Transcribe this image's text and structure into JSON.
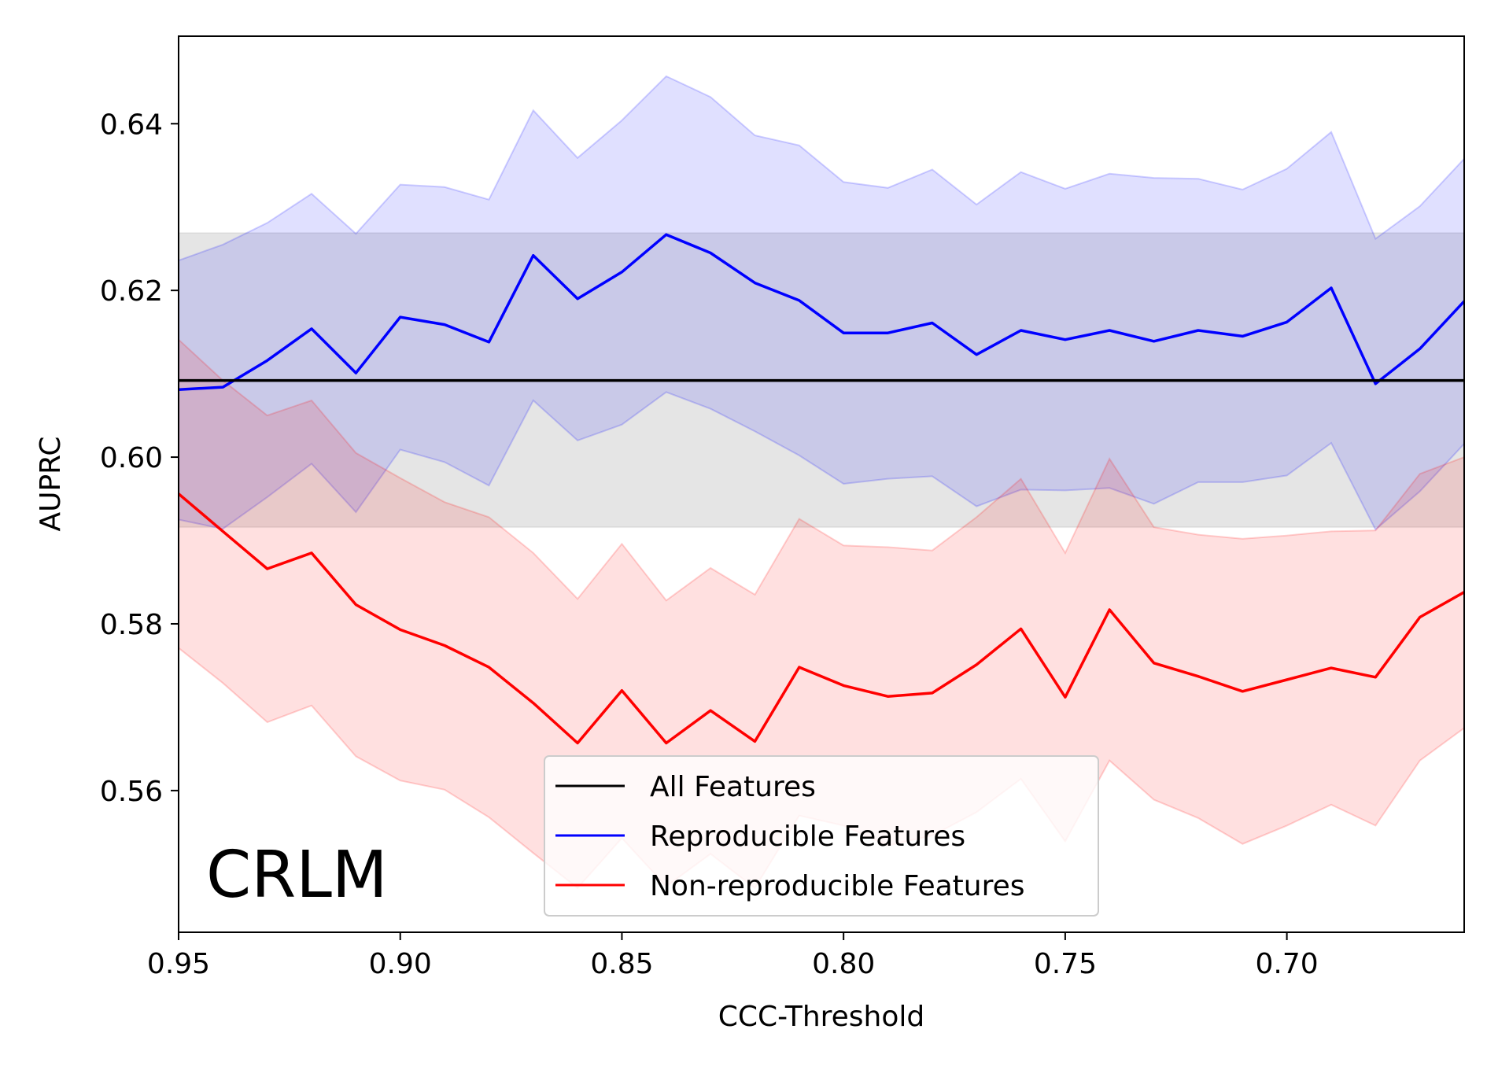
{
  "chart_data": {
    "type": "line",
    "title": "",
    "panel_label": "CRLM",
    "xlabel": "CCC-Threshold",
    "ylabel": "AUPRC",
    "xlim": [
      0.95,
      0.66
    ],
    "ylim": [
      0.543,
      0.6505
    ],
    "x_reversed": true,
    "grid": false,
    "legend_placement": "lower center",
    "x_ticks": [
      0.95,
      0.9,
      0.85,
      0.8,
      0.75,
      0.7
    ],
    "x_tick_labels": [
      "0.95",
      "0.90",
      "0.85",
      "0.80",
      "0.75",
      "0.70"
    ],
    "y_ticks": [
      0.56,
      0.58,
      0.6,
      0.62,
      0.64
    ],
    "y_tick_labels": [
      "0.56",
      "0.58",
      "0.60",
      "0.62",
      "0.64"
    ],
    "x": [
      0.95,
      0.94,
      0.93,
      0.92,
      0.91,
      0.9,
      0.89,
      0.88,
      0.87,
      0.86,
      0.85,
      0.84,
      0.83,
      0.82,
      0.81,
      0.8,
      0.79,
      0.78,
      0.77,
      0.76,
      0.75,
      0.74,
      0.73,
      0.72,
      0.71,
      0.7,
      0.69,
      0.68,
      0.67,
      0.66
    ],
    "series": [
      {
        "name": "All Features",
        "color": "#000000",
        "values": [
          0.6092,
          0.6092,
          0.6092,
          0.6092,
          0.6092,
          0.6092,
          0.6092,
          0.6092,
          0.6092,
          0.6092,
          0.6092,
          0.6092,
          0.6092,
          0.6092,
          0.6092,
          0.6092,
          0.6092,
          0.6092,
          0.6092,
          0.6092,
          0.6092,
          0.6092,
          0.6092,
          0.6092,
          0.6092,
          0.6092,
          0.6092,
          0.6092,
          0.6092,
          0.6092
        ],
        "band_upper": [
          0.6269,
          0.6269,
          0.6269,
          0.6269,
          0.6269,
          0.6269,
          0.6269,
          0.6269,
          0.6269,
          0.6269,
          0.6269,
          0.6269,
          0.6269,
          0.6269,
          0.6269,
          0.6269,
          0.6269,
          0.6269,
          0.6269,
          0.6269,
          0.6269,
          0.6269,
          0.6269,
          0.6269,
          0.6269,
          0.6269,
          0.6269,
          0.6269,
          0.6269,
          0.6269
        ],
        "band_lower": [
          0.5916,
          0.5916,
          0.5916,
          0.5916,
          0.5916,
          0.5916,
          0.5916,
          0.5916,
          0.5916,
          0.5916,
          0.5916,
          0.5916,
          0.5916,
          0.5916,
          0.5916,
          0.5916,
          0.5916,
          0.5916,
          0.5916,
          0.5916,
          0.5916,
          0.5916,
          0.5916,
          0.5916,
          0.5916,
          0.5916,
          0.5916,
          0.5916,
          0.5916,
          0.5916
        ],
        "band_color": "#999999"
      },
      {
        "name": "Reproducible Features",
        "color": "#0000ff",
        "values": [
          0.6081,
          0.6084,
          0.6116,
          0.6154,
          0.6101,
          0.6168,
          0.6159,
          0.6138,
          0.6242,
          0.619,
          0.6222,
          0.6267,
          0.6245,
          0.6209,
          0.6188,
          0.6149,
          0.6149,
          0.6161,
          0.6123,
          0.6152,
          0.6141,
          0.6152,
          0.6139,
          0.6152,
          0.6145,
          0.6162,
          0.6203,
          0.6088,
          0.613,
          0.6187
        ],
        "band_upper": [
          0.6236,
          0.6255,
          0.6281,
          0.6316,
          0.6268,
          0.6327,
          0.6324,
          0.6309,
          0.6416,
          0.6359,
          0.6404,
          0.6457,
          0.6432,
          0.6386,
          0.6374,
          0.633,
          0.6323,
          0.6345,
          0.6303,
          0.6342,
          0.6322,
          0.634,
          0.6335,
          0.6334,
          0.6321,
          0.6346,
          0.639,
          0.6262,
          0.6301,
          0.6358
        ],
        "band_lower": [
          0.5925,
          0.5914,
          0.5952,
          0.5992,
          0.5934,
          0.6009,
          0.5994,
          0.5966,
          0.6068,
          0.602,
          0.6039,
          0.6078,
          0.6058,
          0.6031,
          0.6002,
          0.5968,
          0.5974,
          0.5977,
          0.5941,
          0.5961,
          0.596,
          0.5963,
          0.5944,
          0.597,
          0.597,
          0.5978,
          0.6017,
          0.5913,
          0.5959,
          0.6016
        ],
        "band_color": "#0000ff"
      },
      {
        "name": "Non-reproducible Features",
        "color": "#ff0000",
        "values": [
          0.5956,
          0.5911,
          0.5866,
          0.5885,
          0.5823,
          0.5793,
          0.5774,
          0.5748,
          0.5705,
          0.5657,
          0.572,
          0.5657,
          0.5696,
          0.5659,
          0.5748,
          0.5726,
          0.5713,
          0.5717,
          0.5751,
          0.5794,
          0.5712,
          0.5817,
          0.5753,
          0.5737,
          0.5719,
          0.5733,
          0.5747,
          0.5736,
          0.5808,
          0.5838
        ],
        "band_upper": [
          0.6141,
          0.6092,
          0.605,
          0.6068,
          0.6005,
          0.5975,
          0.5946,
          0.5928,
          0.5885,
          0.583,
          0.5896,
          0.5828,
          0.5867,
          0.5835,
          0.5926,
          0.5894,
          0.5892,
          0.5888,
          0.5928,
          0.5974,
          0.5885,
          0.5998,
          0.5916,
          0.5907,
          0.5902,
          0.5906,
          0.5911,
          0.5912,
          0.598,
          0.6
        ],
        "band_lower": [
          0.5771,
          0.5729,
          0.5682,
          0.5702,
          0.5641,
          0.5612,
          0.5601,
          0.5568,
          0.5525,
          0.5483,
          0.5543,
          0.5485,
          0.5524,
          0.5483,
          0.557,
          0.5558,
          0.5534,
          0.5546,
          0.5574,
          0.5614,
          0.5539,
          0.5636,
          0.5589,
          0.5567,
          0.5536,
          0.5558,
          0.5583,
          0.5558,
          0.5636,
          0.5675
        ],
        "band_color": "#ff0000"
      }
    ]
  }
}
